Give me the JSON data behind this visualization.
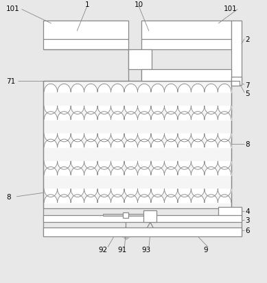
{
  "bg_color": "#e8e8e8",
  "line_color": "#888888",
  "fill_color": "#ffffff",
  "wave_fill": "#f5f5f5",
  "fig_width": 3.89,
  "fig_height": 4.14,
  "dpi": 100
}
